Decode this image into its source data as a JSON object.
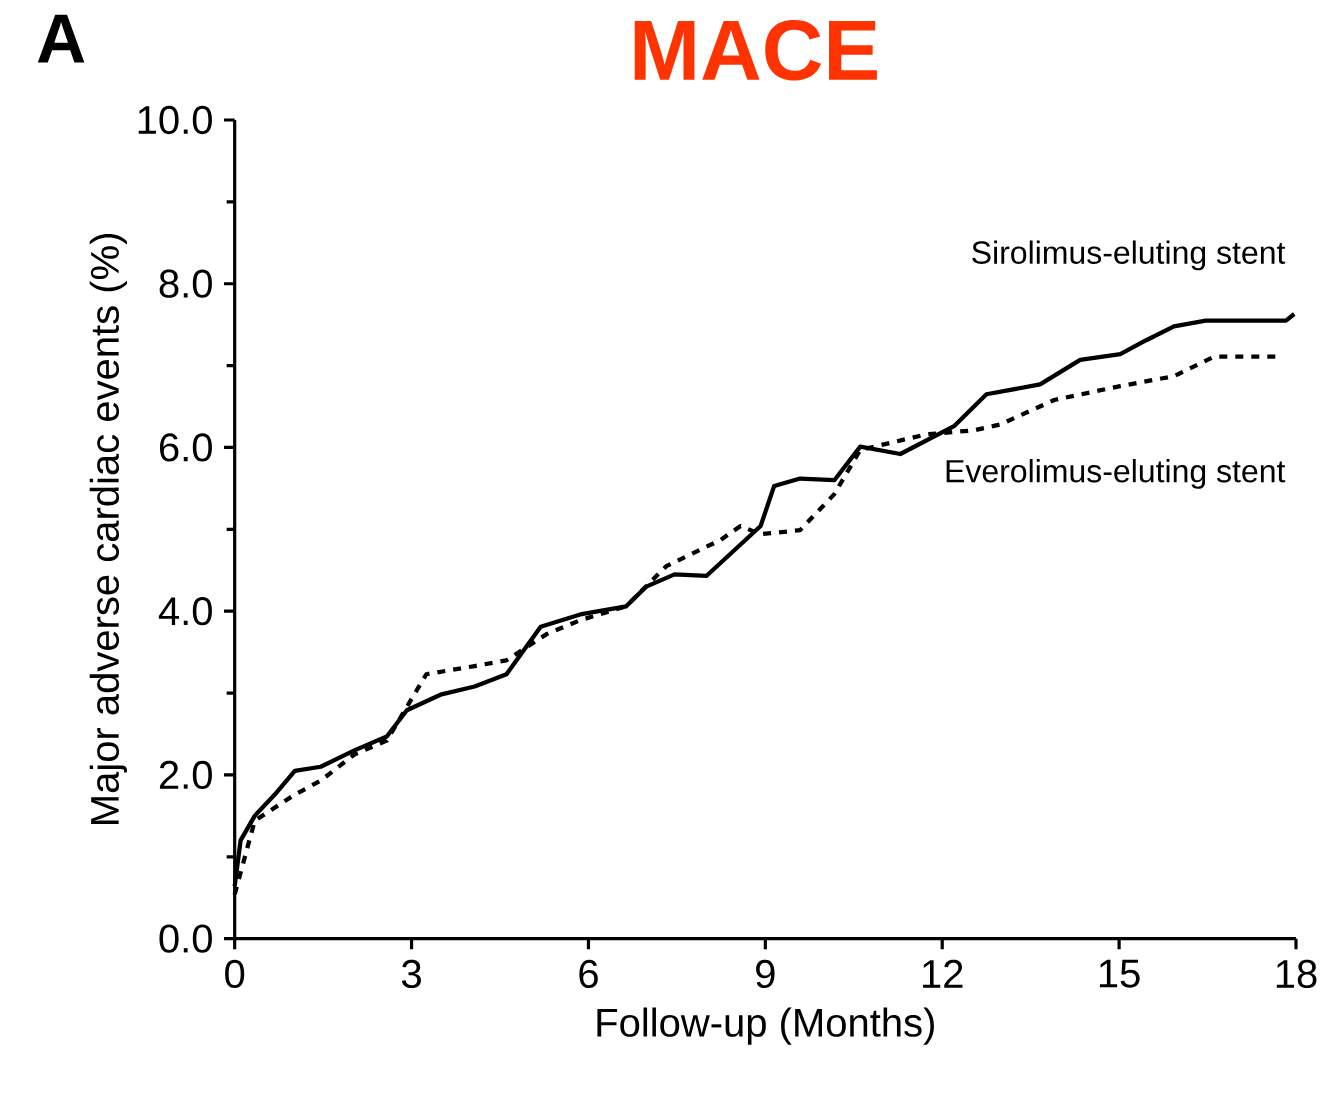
{
  "chart_data": {
    "type": "line",
    "title": "MACE",
    "xlabel": "Follow-up (Months)",
    "ylabel": "Major adverse cardiac events (%)",
    "annotations": [
      "A"
    ],
    "xlim": [
      0,
      18
    ],
    "xticks": [
      0,
      3,
      6,
      9,
      12,
      15,
      18
    ],
    "ylim": [
      0,
      10
    ],
    "yticks": [
      {
        "value": 0,
        "label": "0.0"
      },
      {
        "value": 2,
        "label": "2.0"
      },
      {
        "value": 4,
        "label": "4.0"
      },
      {
        "value": 6,
        "label": "6.0"
      },
      {
        "value": 8,
        "label": "8.0"
      },
      {
        "value": 10,
        "label": "10.0"
      }
    ],
    "grid": false,
    "legend": false,
    "marker": "none",
    "series": [
      {
        "name": "Sirolimus-eluting stent",
        "color": "#000000",
        "line_style": "solid",
        "x": [
          0,
          0.1,
          0.34,
          0.68,
          1.02,
          1.46,
          2.03,
          2.58,
          2.92,
          3.49,
          4.07,
          4.61,
          5.19,
          5.86,
          6.64,
          6.98,
          7.46,
          8.0,
          8.92,
          9.15,
          9.59,
          10.17,
          10.61,
          11.29,
          12.2,
          12.75,
          13.66,
          14.34,
          15.02,
          15.46,
          15.93,
          16.47,
          17.83,
          17.97
        ],
        "values": [
          0.64,
          1.2,
          1.5,
          1.76,
          2.05,
          2.1,
          2.3,
          2.47,
          2.79,
          2.98,
          3.08,
          3.23,
          3.81,
          3.96,
          4.06,
          4.3,
          4.45,
          4.43,
          5.04,
          5.53,
          5.62,
          5.6,
          6.01,
          5.92,
          6.26,
          6.65,
          6.77,
          7.07,
          7.14,
          7.31,
          7.48,
          7.55,
          7.55,
          7.63
        ]
      },
      {
        "name": "Everolimus-eluting stent",
        "color": "#000000",
        "line_style": "dashed",
        "x": [
          0,
          0.34,
          1.02,
          1.46,
          2.03,
          2.58,
          3.25,
          4.07,
          4.61,
          5.29,
          5.86,
          6.64,
          7.32,
          8.24,
          8.58,
          8.92,
          9.59,
          10.17,
          10.61,
          11.73,
          12.54,
          12.98,
          13.9,
          15.02,
          15.93,
          16.61,
          17.73
        ],
        "values": [
          0.54,
          1.44,
          1.76,
          1.93,
          2.25,
          2.42,
          3.23,
          3.33,
          3.4,
          3.72,
          3.89,
          4.06,
          4.55,
          4.87,
          5.04,
          4.94,
          4.99,
          5.43,
          5.97,
          6.16,
          6.21,
          6.28,
          6.58,
          6.75,
          6.87,
          7.11,
          7.11
        ]
      }
    ]
  }
}
